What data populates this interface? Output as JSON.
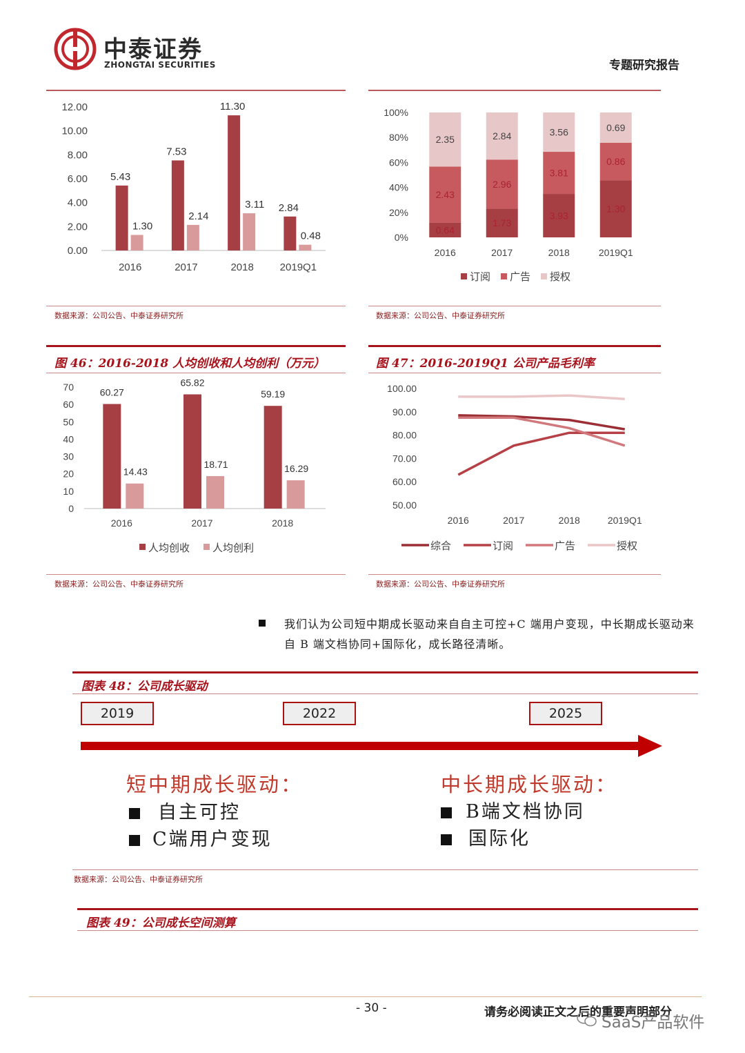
{
  "header": {
    "logo_cn": "中泰证券",
    "logo_en": "ZHONGTAI SECURITIES",
    "report_type": "专题研究报告"
  },
  "colors": {
    "dark": "#a63f43",
    "mid": "#c75a5f",
    "light": "#d99a9c",
    "lighter": "#e8c7c8",
    "line": "#b32025"
  },
  "source_text": "数据来源：公司公告、中泰证券研究所",
  "fig46_title": "图 46：2016-2018 人均创收和人均创利（万元）",
  "fig47_title": "图 47：2016-2019Q1 公司产品毛利率",
  "fig48_title": "图表 48：公司成长驱动",
  "fig49_title": "图表 49：公司成长空间测算",
  "bullet_text": "我们认为公司短中期成长驱动来自自主可控+C 端用户变现，中长期成长驱动来自 B 端文档协同+国际化，成长路径清晰。",
  "timeline": {
    "years": [
      "2019",
      "2022",
      "2025"
    ],
    "left_title": "短中期成长驱动：",
    "left_items": [
      "自主可控",
      "C端用户变现"
    ],
    "right_title": "中长期成长驱动：",
    "right_items": [
      "B端文档协同",
      "国际化"
    ]
  },
  "footer": {
    "page": "- 30 -",
    "notice": "请务必阅读正文之后的重要声明部分",
    "watermark": "SaaS产品软件"
  },
  "chart_data": [
    {
      "type": "bar",
      "categories": [
        "2016",
        "2017",
        "2018",
        "2019Q1"
      ],
      "series": [
        {
          "values": [
            5.43,
            7.53,
            11.3,
            2.84
          ]
        },
        {
          "values": [
            1.3,
            2.14,
            3.11,
            0.48
          ]
        }
      ],
      "yticks": [
        "12.00",
        "10.00",
        "8.00",
        "6.00",
        "4.00",
        "2.00",
        "0.00"
      ],
      "ylim": [
        0,
        12
      ]
    },
    {
      "type": "bar",
      "stacked": true,
      "categories": [
        "2016",
        "2017",
        "2018",
        "2019Q1"
      ],
      "series": [
        {
          "name": "订阅",
          "values": [
            0.64,
            1.73,
            3.93,
            1.3
          ]
        },
        {
          "name": "广告",
          "values": [
            2.43,
            2.96,
            3.81,
            0.86
          ]
        },
        {
          "name": "授权",
          "values": [
            2.35,
            2.84,
            3.56,
            0.69
          ]
        }
      ],
      "yticks": [
        "100%",
        "80%",
        "60%",
        "40%",
        "20%",
        "0%"
      ]
    },
    {
      "type": "bar",
      "title": "图 46：2016-2018 人均创收和人均创利（万元）",
      "categories": [
        "2016",
        "2017",
        "2018"
      ],
      "series": [
        {
          "name": "人均创收",
          "values": [
            60.27,
            65.82,
            59.19
          ]
        },
        {
          "name": "人均创利",
          "values": [
            14.43,
            18.71,
            16.29
          ]
        }
      ],
      "yticks": [
        "70",
        "60",
        "50",
        "40",
        "30",
        "20",
        "10",
        "0"
      ],
      "ylim": [
        0,
        70
      ]
    },
    {
      "type": "line",
      "title": "图 47：2016-2019Q1 公司产品毛利率",
      "categories": [
        "2016",
        "2017",
        "2018",
        "2019Q1"
      ],
      "series": [
        {
          "name": "综合",
          "values": [
            88.5,
            88.0,
            86.5,
            82.5
          ]
        },
        {
          "name": "订阅",
          "values": [
            63.0,
            75.5,
            81.0,
            81.0
          ]
        },
        {
          "name": "广告",
          "values": [
            87.5,
            87.5,
            83.0,
            75.5
          ]
        },
        {
          "name": "授权",
          "values": [
            96.5,
            96.5,
            97.0,
            95.5
          ]
        }
      ],
      "yticks": [
        "100.00",
        "90.00",
        "80.00",
        "70.00",
        "60.00",
        "50.00"
      ],
      "ylim": [
        50,
        100
      ]
    }
  ]
}
